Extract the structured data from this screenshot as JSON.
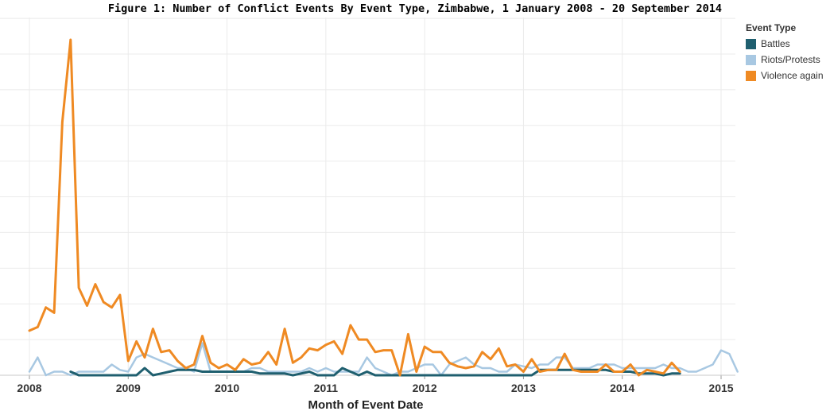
{
  "chart_data": {
    "type": "line",
    "title": "Figure 1: Number of Conflict Events By Event Type, Zimbabwe, 1 January 2008 - 20 September 2014",
    "xlabel": "Month of Event Date",
    "ylabel": "",
    "x_start": "2008-01",
    "x_ticks": [
      "2008",
      "2009",
      "2010",
      "2011",
      "2012",
      "2013",
      "2014",
      "2015"
    ],
    "xlim": [
      "2008-01",
      "2015-01"
    ],
    "ylim": [
      0,
      94
    ],
    "grid": true,
    "legend": {
      "title": "Event Type",
      "position": "right",
      "entries": [
        {
          "label": "Battles",
          "color": "#1f5f6f"
        },
        {
          "label": "Riots/Protests",
          "color": "#a8c8e2"
        },
        {
          "label": "Violence again",
          "color": "#ef8a23"
        }
      ]
    },
    "series": [
      {
        "name": "Battles",
        "color": "#1f5f6f",
        "start": "2008-06",
        "values": [
          1,
          0,
          0,
          0,
          0,
          0,
          0,
          0,
          0,
          2,
          0,
          0.5,
          1,
          1.5,
          1.5,
          1.5,
          1,
          1,
          1,
          1,
          1,
          1,
          1,
          0.5,
          0.5,
          0.5,
          0.5,
          0,
          0.5,
          1,
          0,
          0,
          0,
          2,
          1,
          0,
          1,
          0,
          0,
          0,
          0,
          0,
          0,
          0,
          0,
          0,
          0,
          0,
          0,
          0,
          0,
          0,
          0,
          0,
          0,
          0,
          0,
          1.5,
          1.5,
          1.5,
          1.5,
          1.5,
          1.5,
          1.5,
          1.5,
          1.5,
          1,
          1,
          1,
          0.5,
          0.5,
          0.5,
          0,
          0.5,
          0.5
        ]
      },
      {
        "name": "Riots/Protests",
        "color": "#a8c8e2",
        "start": "2008-01",
        "values": [
          1,
          5,
          0,
          1,
          1,
          0,
          1,
          1,
          1,
          1,
          3,
          1.5,
          1,
          5,
          6,
          5,
          4,
          3,
          2,
          2,
          1,
          9,
          1,
          1,
          1,
          1,
          1,
          2,
          2,
          1,
          1,
          1,
          1,
          1,
          2,
          1,
          2,
          1,
          1,
          1,
          1,
          5,
          2,
          1,
          0,
          1,
          1,
          2,
          3,
          3,
          0,
          3,
          4,
          5,
          3,
          2,
          2,
          1,
          1,
          3,
          2.5,
          2,
          3,
          3,
          5,
          5,
          2,
          2,
          2,
          3,
          3,
          3,
          2,
          2,
          2,
          2,
          2,
          3,
          2,
          2,
          1,
          1,
          2,
          3,
          7,
          6,
          1
        ]
      },
      {
        "name": "Violence again",
        "color": "#ef8a23",
        "start": "2008-01",
        "values": [
          12.5,
          13.5,
          19,
          17.5,
          71,
          94,
          24.5,
          19.5,
          25.5,
          20.5,
          19,
          22.5,
          4,
          9.5,
          5,
          13,
          6.5,
          7,
          4,
          2,
          3,
          11,
          3.5,
          2,
          3,
          1.5,
          4.5,
          3,
          3.5,
          6.5,
          3,
          13,
          3.5,
          5,
          7.5,
          7,
          8.5,
          9.5,
          6,
          14,
          10,
          10,
          6.5,
          7,
          7,
          0,
          11.5,
          1,
          8,
          6.5,
          6.5,
          3.5,
          2.5,
          2,
          2.5,
          6.5,
          4.5,
          7.5,
          2.5,
          3,
          1,
          4.5,
          1,
          1.5,
          1.5,
          6,
          1.5,
          1,
          1,
          1,
          3,
          1,
          1,
          3,
          0,
          1.5,
          1,
          0.5,
          3.5,
          1
        ]
      }
    ]
  }
}
